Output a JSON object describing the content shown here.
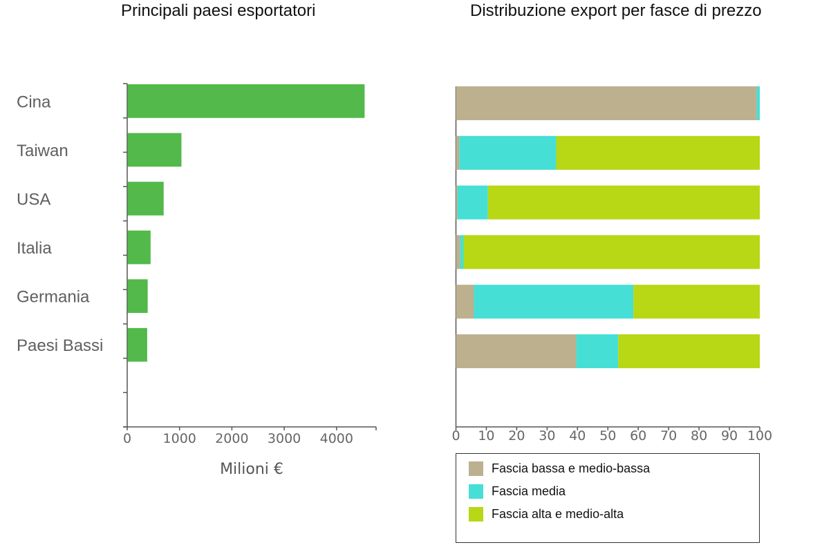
{
  "chart_data": [
    {
      "type": "bar",
      "orientation": "horizontal",
      "title": "Principali paesi esportatori",
      "categories": [
        "Cina",
        "Taiwan",
        "USA",
        "Italia",
        "Germania",
        "Paesi Bassi"
      ],
      "values": [
        4530,
        1030,
        690,
        440,
        385,
        375
      ],
      "xlabel": "Milioni €",
      "ylabel": "",
      "xlim": [
        0,
        4750
      ],
      "xticks": [
        "0",
        "1000",
        "2000",
        "3000",
        "4000"
      ],
      "grid": false,
      "color": "#52b94a"
    },
    {
      "type": "bar",
      "orientation": "horizontal",
      "stacked": true,
      "title": "Distribuzione export per fasce di prezzo",
      "categories": [
        "Cina",
        "Taiwan",
        "USA",
        "Italia",
        "Germania",
        "Paesi Bassi"
      ],
      "series": [
        {
          "name": "Fascia bassa e medio-bassa",
          "color": "#bcb08f",
          "values": [
            99.0,
            1.1,
            0.5,
            1.4,
            5.9,
            39.6
          ]
        },
        {
          "name": "Fascia media",
          "color": "#45dfd5",
          "values": [
            1.0,
            31.9,
            10.0,
            1.1,
            52.5,
            13.8
          ]
        },
        {
          "name": "Fascia alta e medio-alta",
          "color": "#b8d715",
          "values": [
            0.0,
            67.0,
            89.5,
            97.5,
            41.6,
            46.6
          ]
        }
      ],
      "xlabel": "",
      "ylabel": "",
      "xlim": [
        0,
        100
      ],
      "xticks": [
        "0",
        "10",
        "20",
        "30",
        "40",
        "50",
        "60",
        "70",
        "80",
        "90",
        "100"
      ],
      "grid": false,
      "legend": "bottom"
    }
  ]
}
